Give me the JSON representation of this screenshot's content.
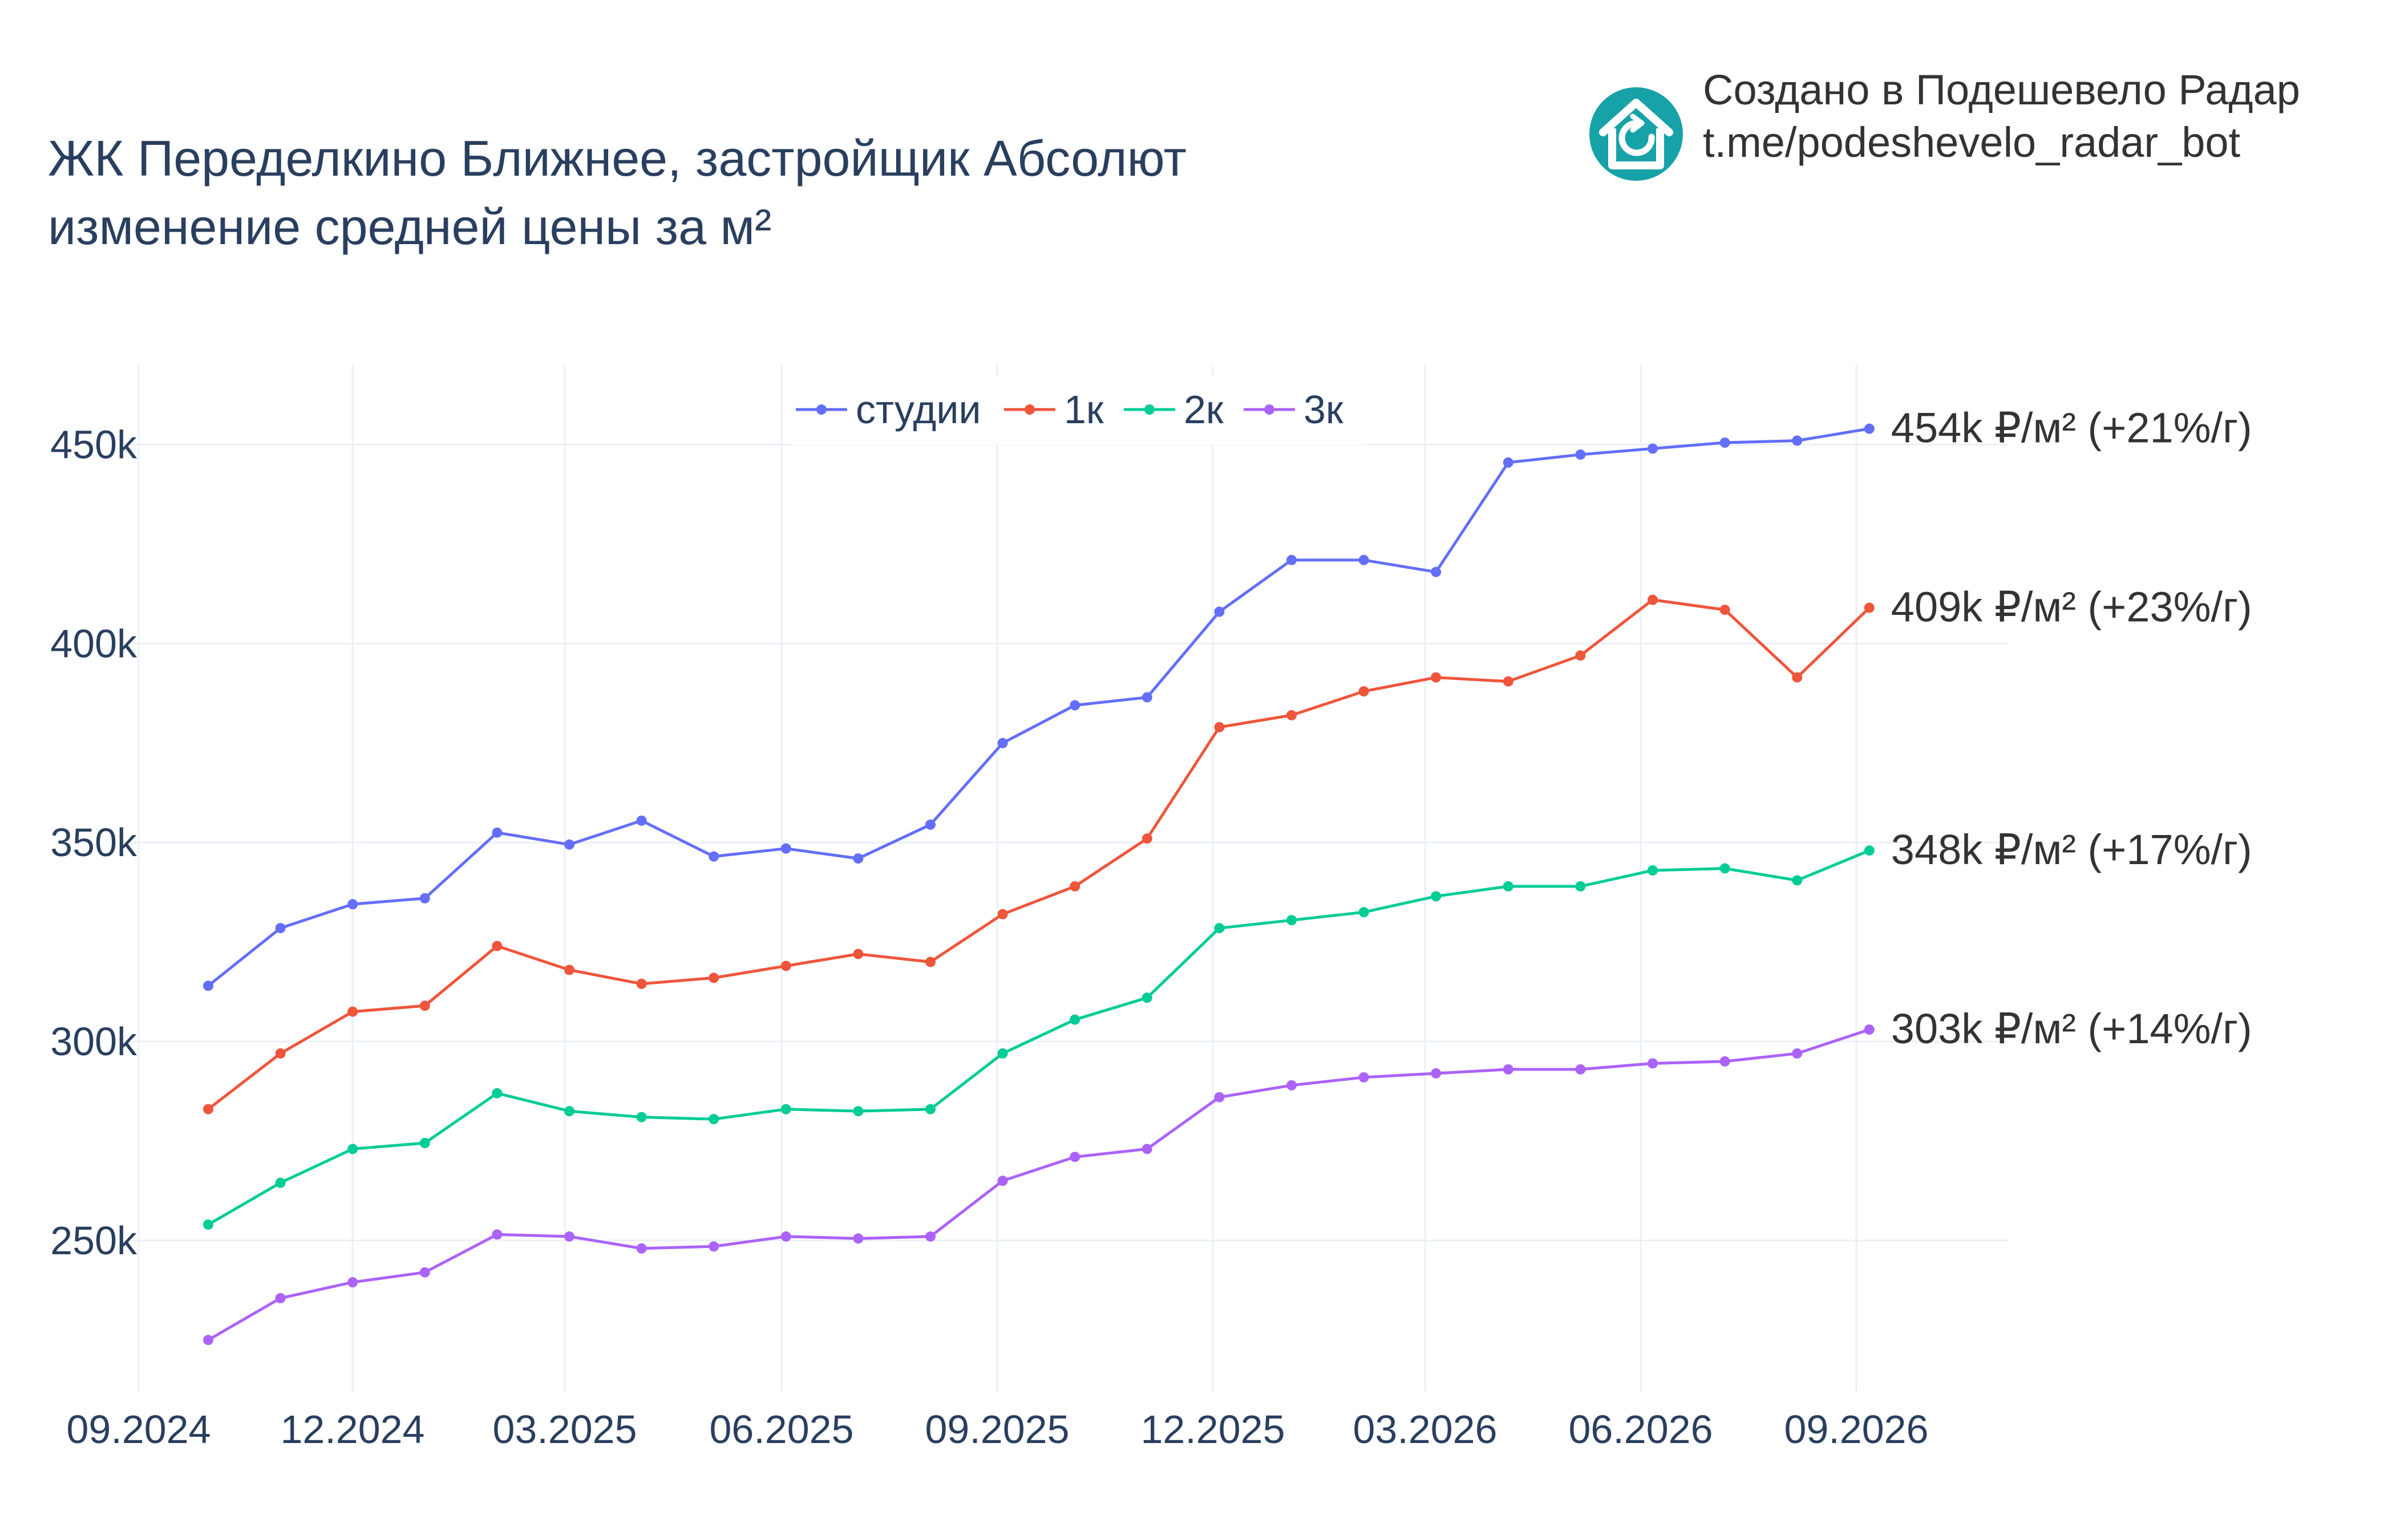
{
  "title": {
    "line1": "ЖК Переделкино Ближнее, застройщик Абсолют",
    "line2": "изменение средней цены за м²"
  },
  "brand": {
    "line1": "Создано в Подешевело Радар",
    "line2": "t.me/podeshevelo_radar_bot",
    "logo_icon": "house-refresh-icon",
    "logo_color": "#17a2a8"
  },
  "chart_data": {
    "type": "line",
    "x": [
      "10.2024",
      "11.2024",
      "12.2024",
      "01.2025",
      "02.2025",
      "03.2025",
      "04.2025",
      "05.2025",
      "06.2025",
      "07.2025",
      "08.2025",
      "09.2025",
      "10.2025",
      "11.2025",
      "12.2025",
      "01.2026",
      "02.2026",
      "03.2026",
      "04.2026",
      "05.2026",
      "06.2026",
      "07.2026",
      "08.2026",
      "09.2026"
    ],
    "xticks": [
      "09.2024",
      "12.2024",
      "03.2025",
      "06.2025",
      "09.2025",
      "12.2025",
      "03.2026",
      "06.2026",
      "09.2026"
    ],
    "yticks": [
      250000,
      300000,
      350000,
      400000,
      450000
    ],
    "ytick_labels": [
      "250k",
      "300k",
      "350k",
      "400k",
      "450k"
    ],
    "ylim": [
      212000,
      470000
    ],
    "grid": true,
    "legend_position": "top-center",
    "series": [
      {
        "name": "студии",
        "color": "#636efa",
        "values": [
          314000,
          328500,
          334500,
          336000,
          352500,
          349500,
          355500,
          346500,
          348500,
          346000,
          354500,
          375000,
          384500,
          386500,
          408000,
          421000,
          421000,
          418000,
          445500,
          447500,
          449000,
          450500,
          451000,
          454000
        ],
        "end_label": "454k ₽/м² (+21%/г)"
      },
      {
        "name": "1к",
        "color": "#ef553b",
        "values": [
          283000,
          297000,
          307500,
          309000,
          324000,
          318000,
          314500,
          316000,
          319000,
          322000,
          320000,
          332000,
          339000,
          351000,
          379000,
          382000,
          388000,
          391500,
          390500,
          397000,
          411000,
          408500,
          391500,
          409000
        ],
        "end_label": "409k ₽/м² (+23%/г)"
      },
      {
        "name": "2к",
        "color": "#00cc96",
        "values": [
          254000,
          264500,
          273000,
          274500,
          287000,
          282500,
          281000,
          280500,
          283000,
          282500,
          283000,
          297000,
          305500,
          311000,
          328500,
          330500,
          332500,
          336500,
          339000,
          339000,
          343000,
          343500,
          340500,
          348000
        ],
        "end_label": "348k ₽/м² (+17%/г)"
      },
      {
        "name": "3к",
        "color": "#ab63fa",
        "values": [
          225000,
          235500,
          239500,
          242000,
          251500,
          251000,
          248000,
          248500,
          251000,
          250500,
          251000,
          265000,
          271000,
          273000,
          286000,
          289000,
          291000,
          292000,
          293000,
          293000,
          294500,
          295000,
          297000,
          303000
        ],
        "end_label": "303k ₽/м² (+14%/г)"
      }
    ]
  }
}
